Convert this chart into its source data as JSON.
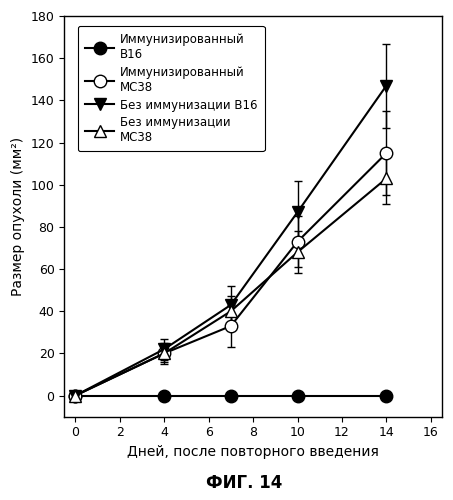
{
  "xlabel": "Дней, после повторного введения",
  "ylabel": "Размер опухоли (мм²)",
  "fig_label": "ФИГ. 14",
  "xlim": [
    -0.5,
    16.5
  ],
  "ylim": [
    -10,
    180
  ],
  "xticks": [
    0,
    2,
    4,
    6,
    8,
    10,
    12,
    14,
    16
  ],
  "yticks": [
    0,
    20,
    40,
    60,
    80,
    100,
    120,
    140,
    160,
    180
  ],
  "series": [
    {
      "label": "Иммунизированный\nВ16",
      "x": [
        0,
        4,
        7,
        10,
        14
      ],
      "y": [
        0,
        0,
        0,
        0,
        0
      ],
      "yerr": [
        0,
        0,
        0,
        0,
        0
      ],
      "marker": "o",
      "markerfacecolor": "black",
      "markeredgecolor": "black",
      "color": "black",
      "markersize": 9,
      "linewidth": 1.5
    },
    {
      "label": "Иммунизированный\nМС38",
      "x": [
        0,
        4,
        7,
        10,
        14
      ],
      "y": [
        0,
        20,
        33,
        73,
        115
      ],
      "yerr": [
        0,
        5,
        10,
        12,
        20
      ],
      "marker": "o",
      "markerfacecolor": "white",
      "markeredgecolor": "black",
      "color": "black",
      "markersize": 9,
      "linewidth": 1.5
    },
    {
      "label": "Без иммунизации В16",
      "x": [
        0,
        4,
        7,
        10,
        14
      ],
      "y": [
        0,
        22,
        43,
        87,
        147
      ],
      "yerr": [
        0,
        5,
        9,
        15,
        20
      ],
      "marker": "v",
      "markerfacecolor": "black",
      "markeredgecolor": "black",
      "color": "black",
      "markersize": 9,
      "linewidth": 1.5
    },
    {
      "label": "Без иммунизации\nМС38",
      "x": [
        0,
        4,
        7,
        10,
        14
      ],
      "y": [
        0,
        20,
        40,
        68,
        103
      ],
      "yerr": [
        0,
        4,
        7,
        10,
        12
      ],
      "marker": "^",
      "markerfacecolor": "white",
      "markeredgecolor": "black",
      "color": "black",
      "markersize": 9,
      "linewidth": 1.5
    }
  ],
  "legend_fontsize": 8.5,
  "axis_fontsize": 10,
  "tick_fontsize": 9,
  "fig_label_fontsize": 12
}
